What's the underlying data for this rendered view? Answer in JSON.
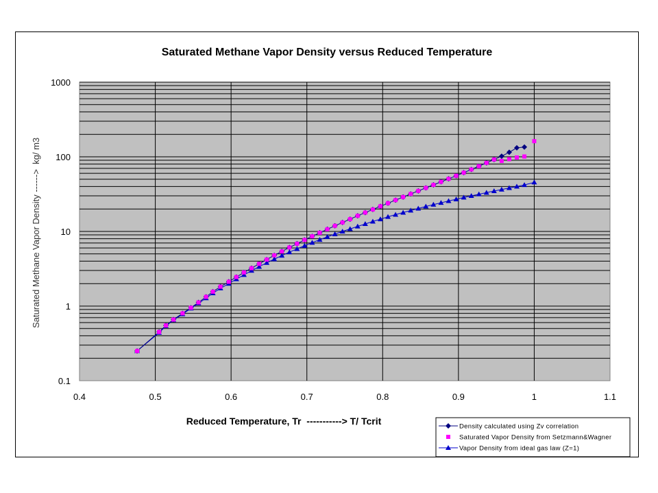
{
  "chart_data": {
    "type": "scatter",
    "title": "Saturated Methane Vapor Density versus Reduced Temperature",
    "xlabel": "Reduced Temperature, Tr  -----------> T/ Tcrit",
    "ylabel": "Saturated Methane Vapor Density ------>  kg/ m3",
    "xlim": [
      0.4,
      1.1
    ],
    "ylim": [
      0.1,
      1000
    ],
    "yscale": "log",
    "xticks": [
      "0.4",
      "0.5",
      "0.6",
      "0.7",
      "0.8",
      "0.9",
      "1",
      "1.1"
    ],
    "yticks": [
      "0.1",
      "1",
      "10",
      "100",
      "1000"
    ],
    "grid": true,
    "plot_background": "#c0c0c0",
    "legend_position": "bottom-right",
    "series": [
      {
        "name": "Density calculated using Zv correlation",
        "color": "#000080",
        "marker": "diamond",
        "line": true,
        "x": [
          0.476,
          0.505,
          0.514,
          0.524,
          0.536,
          0.547,
          0.557,
          0.567,
          0.576,
          0.586,
          0.597,
          0.607,
          0.617,
          0.627,
          0.637,
          0.647,
          0.657,
          0.667,
          0.677,
          0.687,
          0.697,
          0.707,
          0.717,
          0.727,
          0.737,
          0.747,
          0.757,
          0.767,
          0.777,
          0.787,
          0.797,
          0.807,
          0.817,
          0.827,
          0.837,
          0.847,
          0.857,
          0.867,
          0.877,
          0.887,
          0.897,
          0.907,
          0.917,
          0.927,
          0.937,
          0.947,
          0.957,
          0.967,
          0.977,
          0.987
        ],
        "y": [
          0.25,
          0.45,
          0.55,
          0.66,
          0.8,
          0.95,
          1.12,
          1.33,
          1.56,
          1.82,
          2.12,
          2.45,
          2.82,
          3.22,
          3.68,
          4.2,
          4.78,
          5.4,
          6.1,
          6.85,
          7.7,
          8.6,
          9.6,
          10.7,
          11.9,
          13.2,
          14.6,
          16.2,
          17.9,
          19.7,
          21.7,
          23.9,
          26.3,
          28.9,
          31.8,
          34.9,
          38.3,
          42.1,
          46.2,
          50.7,
          55.7,
          61.3,
          67.6,
          74.8,
          83.0,
          92.0,
          102,
          115,
          132,
          135
        ]
      },
      {
        "name": "Saturated Vapor Density from Setzmann&Wagner",
        "color": "#ff00ff",
        "marker": "square",
        "line": false,
        "x": [
          0.476,
          0.505,
          0.514,
          0.524,
          0.536,
          0.547,
          0.557,
          0.567,
          0.576,
          0.586,
          0.597,
          0.607,
          0.617,
          0.627,
          0.637,
          0.647,
          0.657,
          0.667,
          0.677,
          0.687,
          0.697,
          0.707,
          0.717,
          0.727,
          0.737,
          0.747,
          0.757,
          0.767,
          0.777,
          0.787,
          0.797,
          0.807,
          0.817,
          0.827,
          0.837,
          0.847,
          0.857,
          0.867,
          0.877,
          0.887,
          0.897,
          0.907,
          0.917,
          0.927,
          0.937,
          0.947,
          0.957,
          0.967,
          0.977,
          0.987,
          1.0
        ],
        "y": [
          0.25,
          0.45,
          0.55,
          0.66,
          0.8,
          0.95,
          1.12,
          1.33,
          1.56,
          1.82,
          2.12,
          2.45,
          2.82,
          3.22,
          3.68,
          4.2,
          4.78,
          5.4,
          6.1,
          6.85,
          7.7,
          8.6,
          9.6,
          10.7,
          11.9,
          13.2,
          14.6,
          16.2,
          17.9,
          19.7,
          21.7,
          23.9,
          26.3,
          28.9,
          31.8,
          34.9,
          38.3,
          42.1,
          46.2,
          50.7,
          55.7,
          61.3,
          67.6,
          74.8,
          83.0,
          92.0,
          88.0,
          93.0,
          98.0,
          101,
          162
        ]
      },
      {
        "name": "Vapor Density from ideal gas law (Z=1)",
        "color": "#0000cc",
        "marker": "triangle",
        "line": true,
        "x": [
          0.476,
          0.505,
          0.514,
          0.524,
          0.536,
          0.547,
          0.557,
          0.567,
          0.576,
          0.586,
          0.597,
          0.607,
          0.617,
          0.627,
          0.637,
          0.647,
          0.657,
          0.667,
          0.677,
          0.687,
          0.697,
          0.707,
          0.717,
          0.727,
          0.737,
          0.747,
          0.757,
          0.767,
          0.777,
          0.787,
          0.797,
          0.807,
          0.817,
          0.827,
          0.837,
          0.847,
          0.857,
          0.867,
          0.877,
          0.887,
          0.897,
          0.907,
          0.917,
          0.927,
          0.937,
          0.947,
          0.957,
          0.967,
          0.977,
          0.987,
          1.0
        ],
        "y": [
          0.25,
          0.44,
          0.54,
          0.65,
          0.78,
          0.93,
          1.09,
          1.28,
          1.49,
          1.73,
          2.0,
          2.3,
          2.62,
          2.98,
          3.37,
          3.8,
          4.25,
          4.75,
          5.28,
          5.84,
          6.44,
          7.08,
          7.75,
          8.47,
          9.22,
          10.0,
          10.8,
          11.7,
          12.6,
          13.6,
          14.6,
          15.7,
          16.8,
          17.9,
          19.1,
          20.3,
          21.6,
          22.9,
          24.2,
          25.6,
          27.0,
          28.5,
          30.0,
          31.5,
          33.1,
          34.8,
          36.5,
          38.2,
          40.0,
          42.0,
          45.5
        ]
      }
    ]
  }
}
